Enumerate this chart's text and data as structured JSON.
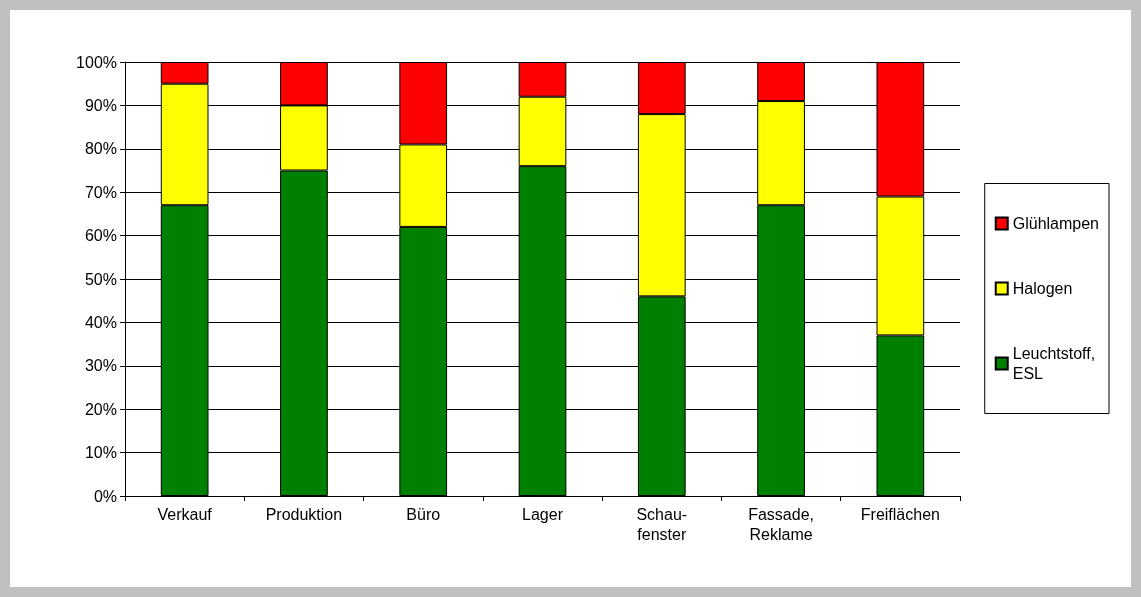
{
  "chart_data": {
    "type": "bar",
    "stacked": true,
    "categories": [
      "Verkauf",
      "Produktion",
      "Büro",
      "Lager",
      "Schau-\nfenster",
      "Fassade,\nReklame",
      "Freiflächen"
    ],
    "series": [
      {
        "name": "Leuchtstoff,\nESL",
        "color": "#008000",
        "values": [
          67,
          75,
          62,
          76,
          46,
          67,
          37
        ]
      },
      {
        "name": "Halogen",
        "color": "#ffff00",
        "values": [
          28,
          15,
          19,
          16,
          42,
          24,
          32
        ]
      },
      {
        "name": "Glühlampen",
        "color": "#ff0000",
        "values": [
          5,
          10,
          19,
          8,
          12,
          9,
          31
        ]
      }
    ],
    "ylim": [
      0,
      100
    ],
    "yticks": [
      {
        "value": 0,
        "label": "0%"
      },
      {
        "value": 10,
        "label": "10%"
      },
      {
        "value": 20,
        "label": "20%"
      },
      {
        "value": 30,
        "label": "30%"
      },
      {
        "value": 40,
        "label": "40%"
      },
      {
        "value": 50,
        "label": "50%"
      },
      {
        "value": 60,
        "label": "60%"
      },
      {
        "value": 70,
        "label": "70%"
      },
      {
        "value": 80,
        "label": "80%"
      },
      {
        "value": 90,
        "label": "90%"
      },
      {
        "value": 100,
        "label": "100%"
      }
    ],
    "grid": "y",
    "legend": "right"
  }
}
